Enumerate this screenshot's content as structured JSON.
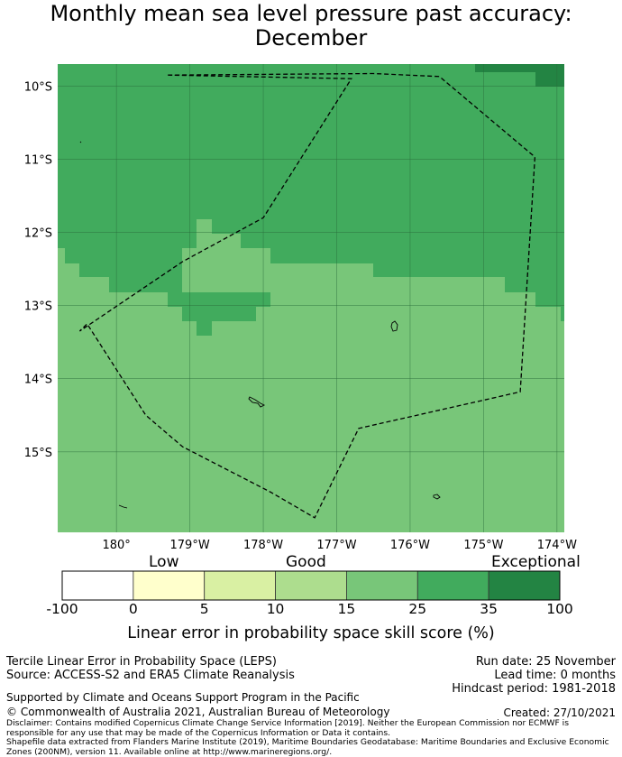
{
  "header": {
    "title_line1": "Monthly mean sea level pressure past accuracy:",
    "title_line2": "December"
  },
  "map": {
    "lon_ticks": [
      {
        "value": 180,
        "label": "180°"
      },
      {
        "value": 179,
        "label": "179°W"
      },
      {
        "value": 178,
        "label": "178°W"
      },
      {
        "value": 177,
        "label": "177°W"
      },
      {
        "value": 176,
        "label": "176°W"
      },
      {
        "value": 175,
        "label": "175°W"
      },
      {
        "value": 174,
        "label": "174°W"
      }
    ],
    "lat_ticks": [
      {
        "value": 10,
        "label": "10°S"
      },
      {
        "value": 11,
        "label": "11°S"
      },
      {
        "value": 12,
        "label": "12°S"
      },
      {
        "value": 13,
        "label": "13°S"
      },
      {
        "value": 14,
        "label": "14°S"
      },
      {
        "value": 15,
        "label": "15°S"
      }
    ],
    "lon_range_w": [
      180.8,
      173.9
    ],
    "lat_range_s": [
      9.7,
      16.1
    ],
    "colors": {
      "skill_25_35": "#41ab5d",
      "skill_15_25": "#78c679",
      "skill_35_100": "#238443",
      "eez_line": "#000000",
      "land": "#000000"
    },
    "eez_boundary": [
      [
        179.3,
        9.85
      ],
      [
        176.5,
        9.83
      ],
      [
        175.6,
        9.87
      ],
      [
        174.3,
        10.97
      ],
      [
        174.5,
        14.18
      ],
      [
        176.7,
        14.68
      ],
      [
        177.3,
        15.9
      ],
      [
        177.9,
        15.55
      ],
      [
        179.1,
        14.93
      ],
      [
        179.6,
        14.5
      ],
      [
        180.4,
        13.25
      ],
      [
        180.5,
        13.35
      ],
      [
        179.1,
        12.4
      ],
      [
        178.0,
        11.8
      ],
      [
        177.4,
        10.85
      ],
      [
        176.8,
        9.9
      ]
    ]
  },
  "colorbar": {
    "categories": [
      "Low",
      "Good",
      "Exceptional"
    ],
    "bins": [
      {
        "from": -100,
        "to": 0,
        "color": "#ffffff"
      },
      {
        "from": 0,
        "to": 5,
        "color": "#ffffcc"
      },
      {
        "from": 5,
        "to": 10,
        "color": "#d9f0a3"
      },
      {
        "from": 10,
        "to": 15,
        "color": "#addd8e"
      },
      {
        "from": 15,
        "to": 25,
        "color": "#78c679"
      },
      {
        "from": 25,
        "to": 35,
        "color": "#41ab5d"
      },
      {
        "from": 35,
        "to": 100,
        "color": "#238443"
      }
    ],
    "tick_labels": [
      "-100",
      "0",
      "5",
      "10",
      "15",
      "25",
      "35",
      "100"
    ],
    "label": "Linear error in probability space skill score (%)"
  },
  "footer": {
    "left_line1": "Tercile Linear Error in Probability Space (LEPS)",
    "left_line2": "Source: ACCESS-S2 and ERA5 Climate Reanalysis",
    "support": "Supported by Climate and Oceans Support Program in the Pacific",
    "copyright": "© Commonwealth of Australia 2021, Australian Bureau of Meteorology",
    "run_date": "Run date: 25 November",
    "lead_time": "Lead time: 0 months",
    "hindcast": "Hindcast period: 1981-2018",
    "created": "Created: 27/10/2021",
    "disclaimer_line1": "Disclaimer: Contains modified Copernicus Climate Change Service Information [2019]. Neither the European Commission nor ECMWF is",
    "disclaimer_line2": "responsible for any use that may be made of the Copernicus Information or Data it contains.",
    "disclaimer_line3": "Shapefile data extracted from Flanders Marine Institute (2019), Maritime Boundaries Geodatabase: Maritime Boundaries and Exclusive Economic",
    "disclaimer_line4": "Zones (200NM), version 11. Available online at http://www.marineregions.org/."
  }
}
